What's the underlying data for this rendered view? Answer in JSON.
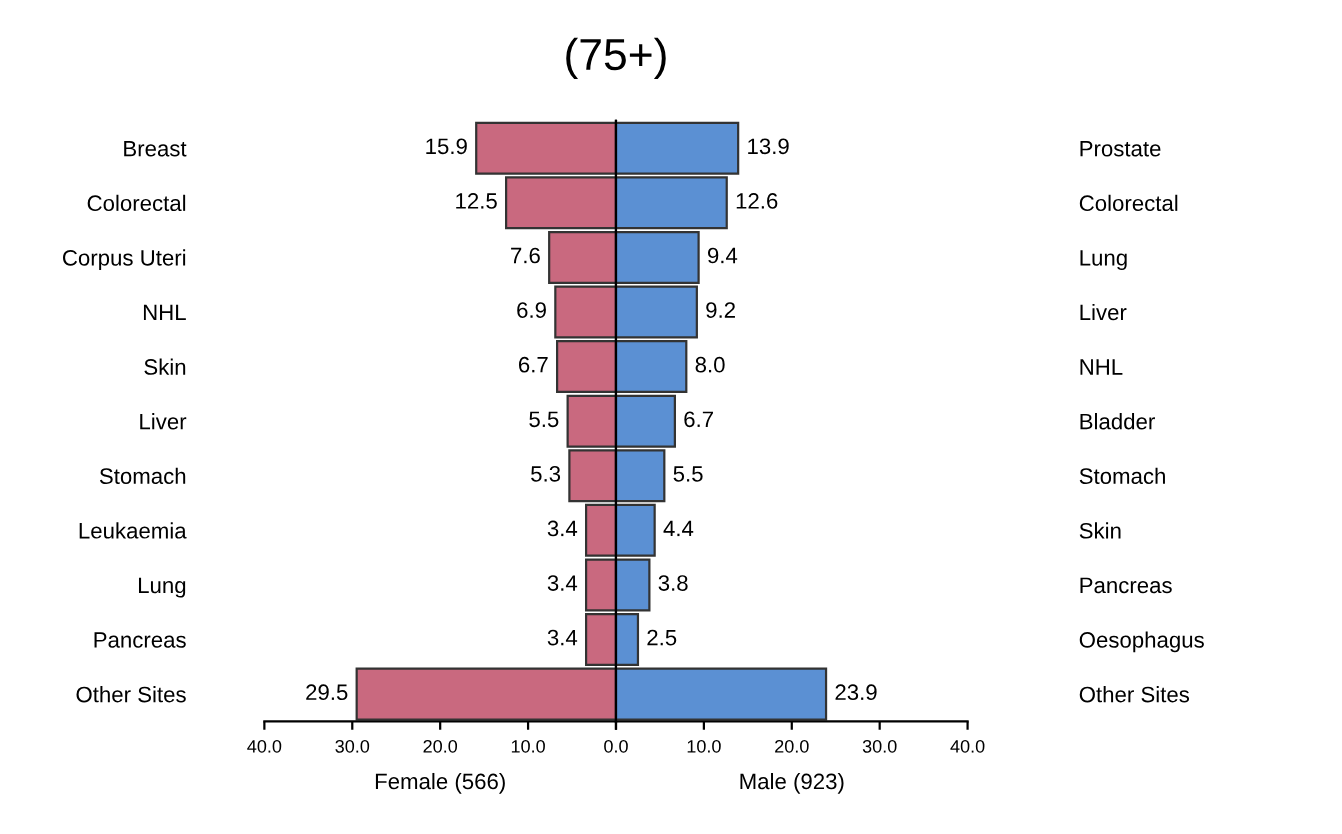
{
  "chart_data": [
    {
      "type": "bar",
      "orientation": "horizontal",
      "title": "(75+)",
      "xlabel": "Female (566)",
      "categories": [
        "Breast",
        "Colorectal",
        "Corpus Uteri",
        "NHL",
        "Skin",
        "Liver",
        "Stomach",
        "Leukaemia",
        "Lung",
        "Pancreas",
        "Other Sites"
      ],
      "values": [
        15.9,
        12.5,
        7.6,
        6.9,
        6.7,
        5.5,
        5.3,
        3.4,
        3.4,
        3.4,
        29.5
      ],
      "color": "#c9697f",
      "data_labels": true,
      "grid": false,
      "legend": false,
      "xlim": [
        40,
        0
      ],
      "xticks": [
        {
          "value": 40,
          "label": "40.0"
        },
        {
          "value": 30,
          "label": "30.0"
        },
        {
          "value": 20,
          "label": "20.0"
        },
        {
          "value": 10,
          "label": "10.0"
        },
        {
          "value": 0,
          "label": "0.0"
        }
      ]
    },
    {
      "type": "bar",
      "orientation": "horizontal",
      "xlabel": "Male (923)",
      "categories": [
        "Prostate",
        "Colorectal",
        "Lung",
        "Liver",
        "NHL",
        "Bladder",
        "Stomach",
        "Skin",
        "Pancreas",
        "Oesophagus",
        "Other Sites"
      ],
      "values": [
        13.9,
        12.6,
        9.4,
        9.2,
        8.0,
        6.7,
        5.5,
        4.4,
        3.8,
        2.5,
        23.9
      ],
      "value_labels": [
        "13.9",
        "12.6",
        "9.4",
        "9.2",
        "8.0",
        "6.7",
        "5.5",
        "4.4",
        "3.8",
        "2.5",
        "23.9"
      ],
      "color": "#5b90d3",
      "grid": false,
      "legend": false,
      "xlim": [
        0,
        40
      ],
      "xticks": [
        {
          "value": 0,
          "label": null
        },
        {
          "value": 10,
          "label": "10.0"
        },
        {
          "value": 20,
          "label": "20.0"
        },
        {
          "value": 30,
          "label": "30.0"
        },
        {
          "value": 40,
          "label": "40.0"
        }
      ]
    }
  ]
}
